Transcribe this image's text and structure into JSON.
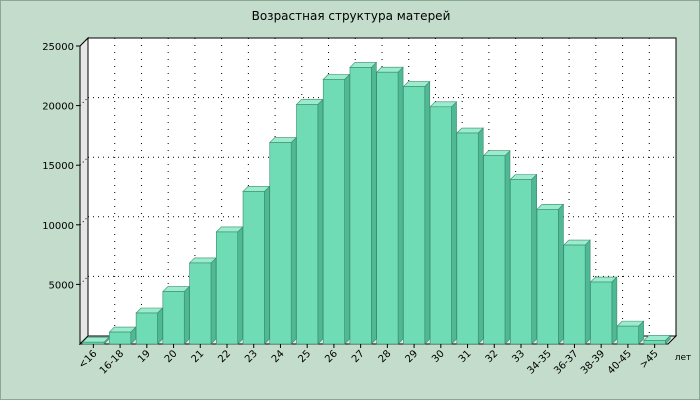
{
  "chart_data": {
    "type": "bar",
    "title": "Возрастная структура матерей",
    "x_unit": "лет",
    "categories": [
      "<16",
      "16-18",
      "19",
      "20",
      "21",
      "22",
      "23",
      "24",
      "25",
      "26",
      "27",
      "28",
      "29",
      "30",
      "31",
      "32",
      "33",
      "34-35",
      "36-37",
      "38-39",
      "40-45",
      ">45"
    ],
    "values": [
      150,
      1000,
      2600,
      4400,
      6800,
      9400,
      12800,
      16900,
      20100,
      22200,
      23200,
      22800,
      21600,
      19900,
      17700,
      15800,
      13800,
      11300,
      8300,
      5200,
      1500,
      300
    ],
    "y_ticks": [
      5000,
      10000,
      15000,
      20000,
      25000
    ],
    "ylim": [
      0,
      25000
    ],
    "grid": true,
    "bar_color": "#6fdcb6"
  }
}
